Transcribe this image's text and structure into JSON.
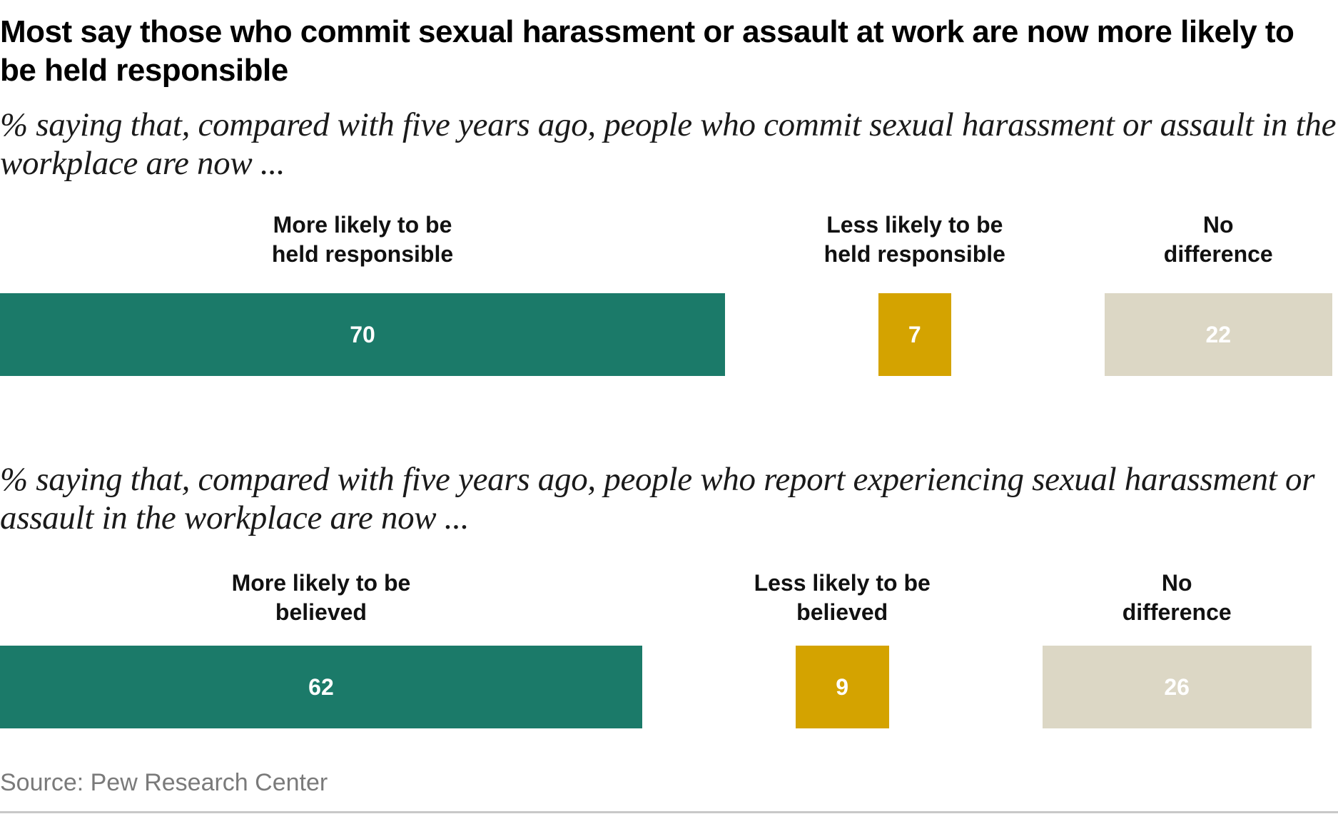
{
  "title": "Most say those who commit sexual harassment or assault at work are now more likely to be held responsible",
  "source": "Source: Pew Research Center",
  "colors": {
    "more": "#1b7a69",
    "less": "#d4a300",
    "none": "#dcd7c5"
  },
  "chart_data": [
    {
      "type": "bar",
      "orientation": "horizontal-stacked-with-gaps",
      "subtitle": "% saying that, compared with five years ago, people who commit sexual harassment or assault in the workplace are now ...",
      "categories": [
        "More likely to be\nheld responsible",
        "Less likely to be\nheld responsible",
        "No\ndifference"
      ],
      "labels": [
        {
          "line1": "More likely to be",
          "line2": "held responsible"
        },
        {
          "line1": "Less likely to be",
          "line2": "held responsible"
        },
        {
          "line1": "No",
          "line2": "difference"
        }
      ],
      "values": [
        70,
        7,
        22
      ]
    },
    {
      "type": "bar",
      "orientation": "horizontal-stacked-with-gaps",
      "subtitle": "% saying that, compared with five years ago, people who report experiencing sexual harassment or assault in the workplace are now ...",
      "categories": [
        "More likely to be\nbelieved",
        "Less likely to be\nbelieved",
        "No\ndifference"
      ],
      "labels": [
        {
          "line1": "More likely to be",
          "line2": "believed"
        },
        {
          "line1": "Less likely to be",
          "line2": "believed"
        },
        {
          "line1": "No",
          "line2": "difference"
        }
      ],
      "values": [
        62,
        9,
        26
      ]
    }
  ]
}
